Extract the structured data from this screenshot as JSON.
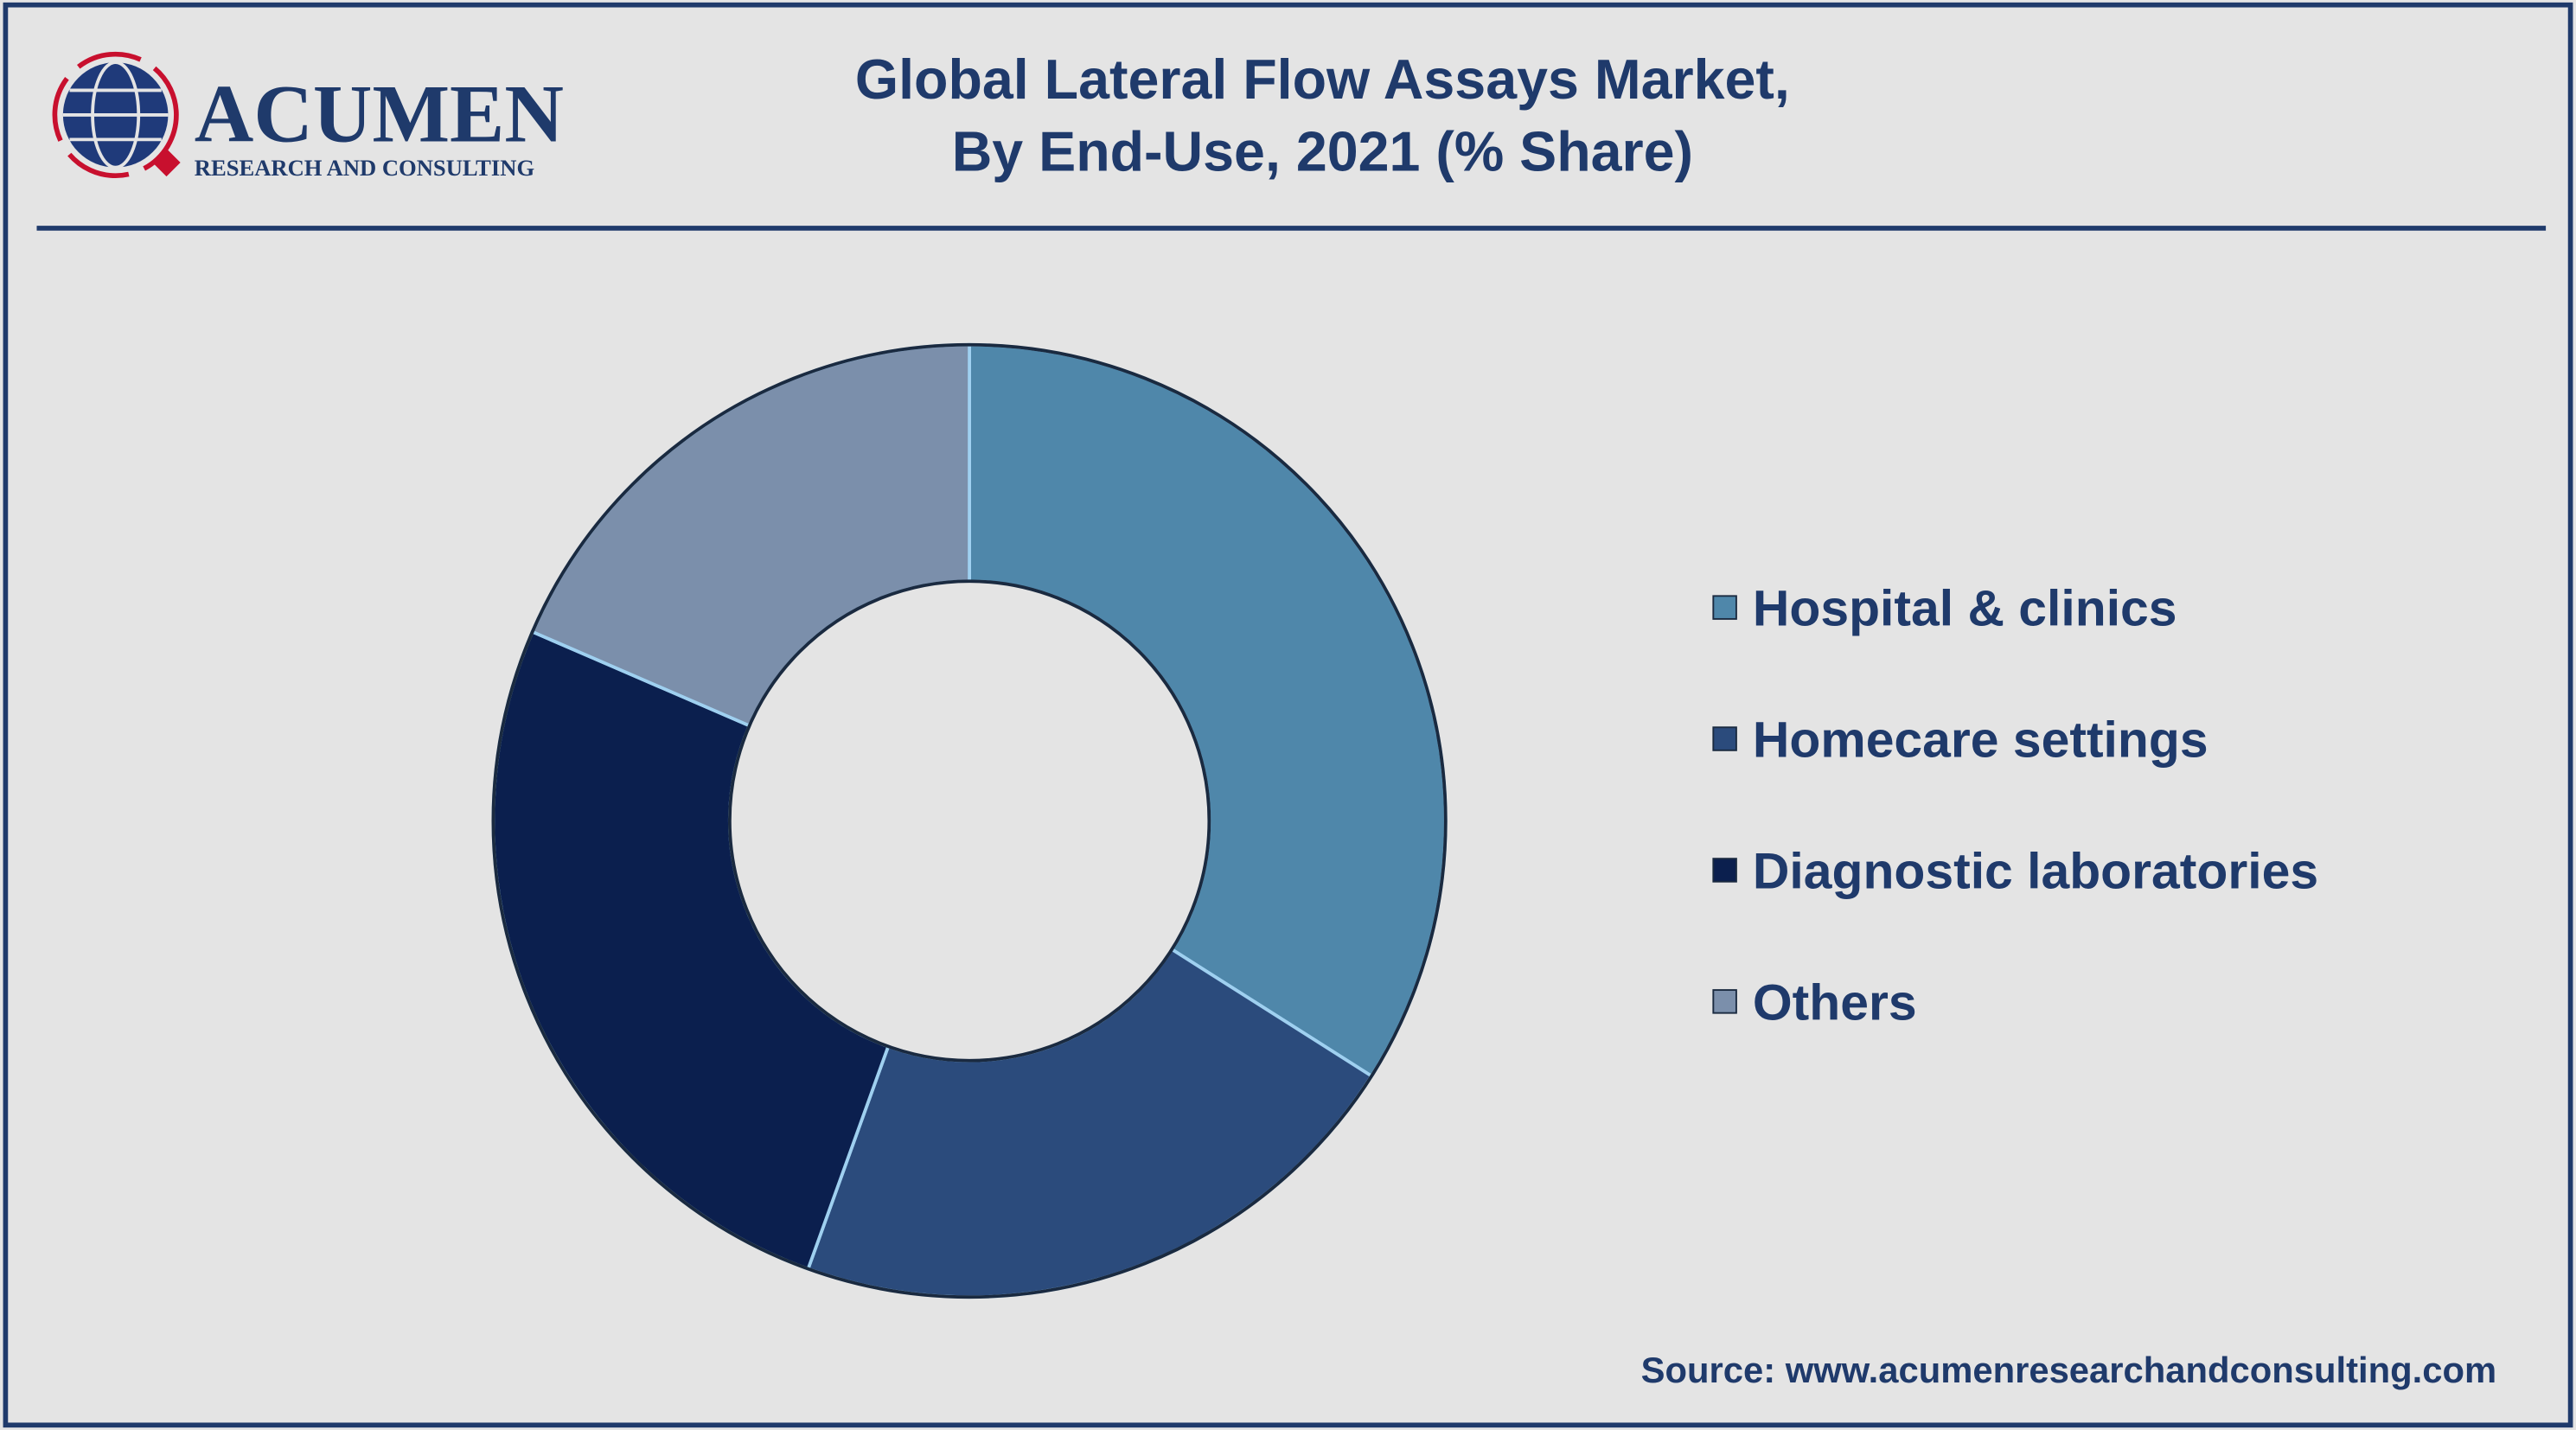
{
  "logo": {
    "name": "ACUMEN",
    "tagline": "RESEARCH AND CONSULTING"
  },
  "chart_data": {
    "type": "donut",
    "title": [
      "Global Lateral Flow Assays Market,",
      "By End-Use, 2021 (% Share)"
    ],
    "categories": [
      "Hospital & clinics",
      "Homecare settings",
      "Diagnostic laboratories",
      "Others"
    ],
    "values": [
      34,
      21.5,
      26,
      18.5
    ],
    "colors": [
      "#4f87aa",
      "#2b4b7c",
      "#0b1f4e",
      "#7b8fab"
    ],
    "legend": "right",
    "source": "Source: www.acumenresearchandconsulting.com"
  }
}
